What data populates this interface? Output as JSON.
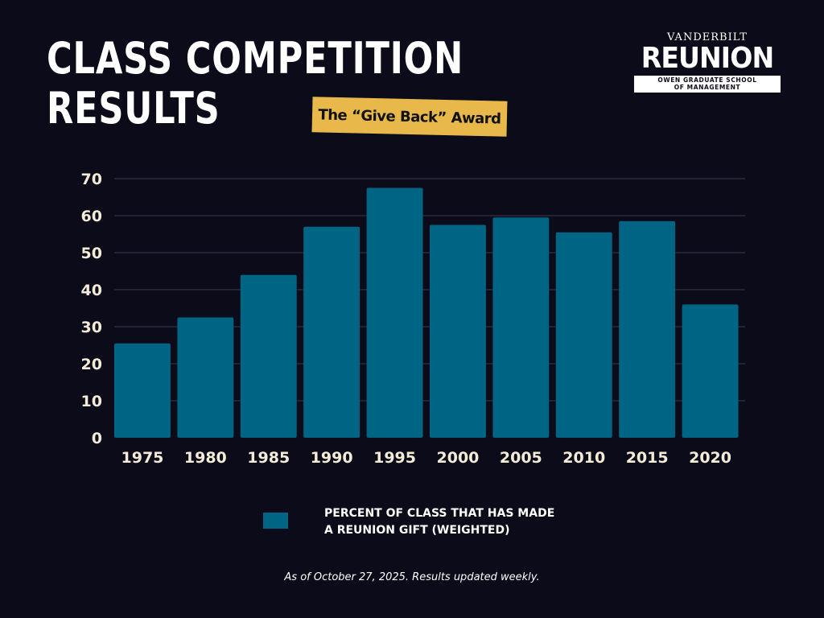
{
  "header": {
    "title_line1": "CLASS COMPETITION",
    "title_line2": "RESULTS",
    "badge": "The “Give Back” Award"
  },
  "logo": {
    "top": "VANDERBILT",
    "main": "REUNION",
    "sub_line1": "OWEN GRADUATE SCHOOL",
    "sub_line2": "OF MANAGEMENT"
  },
  "colors": {
    "background": "#0b0b1a",
    "bar": "#006585",
    "badge": "#e8b94a",
    "tick_label": "#f5ecd7"
  },
  "chart_data": {
    "type": "bar",
    "categories": [
      "1975",
      "1980",
      "1985",
      "1990",
      "1995",
      "2000",
      "2005",
      "2010",
      "2015",
      "2020"
    ],
    "series": [
      {
        "name": "PERCENT OF CLASS THAT HAS MADE A REUNION GIFT (WEIGHTED)",
        "values": [
          25.5,
          32.5,
          44,
          57,
          67.5,
          57.5,
          59.5,
          55.5,
          58.5,
          36
        ]
      }
    ],
    "yticks": [
      0,
      10,
      20,
      30,
      40,
      50,
      60,
      70
    ],
    "ylim": [
      0,
      70
    ],
    "grid": true,
    "legend": "bottom-center",
    "title": "",
    "xlabel": "",
    "ylabel": ""
  },
  "legend": {
    "line1": "PERCENT OF CLASS THAT HAS MADE",
    "line2": "A REUNION GIFT (WEIGHTED)"
  },
  "footnote": "As of October 27, 2025. Results updated weekly."
}
